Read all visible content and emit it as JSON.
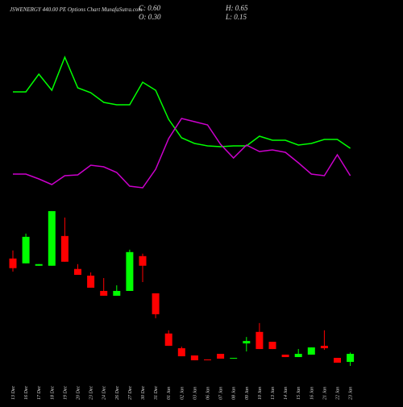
{
  "chart_data": {
    "type": "candlestick",
    "title": "JSWENERGY 440.00 PE Options Chart MunafaSutra.com",
    "ohlc_header": [
      "C: 0.60",
      "H: 0.65",
      "O: 0.30",
      "L: 0.15"
    ],
    "categories": [
      "13 Dec",
      "16 Dec",
      "17 Dec",
      "18 Dec",
      "19 Dec",
      "20 Dec",
      "23 Dec",
      "24 Dec",
      "26 Dec",
      "27 Dec",
      "30 Dec",
      "31 Dec",
      "01 Jan",
      "02 Jan",
      "03 Jan",
      "06 Jan",
      "07 Jan",
      "08 Jan",
      "09 Jan",
      "10 Jan",
      "13 Jan",
      "14 Jan",
      "15 Jan",
      "16 Jan",
      "21 Jan",
      "22 Jan",
      "23 Jan"
    ],
    "open": [
      4.16,
      3.98,
      3.89,
      3.89,
      5.0,
      3.77,
      3.52,
      2.95,
      2.77,
      2.95,
      4.25,
      2.86,
      1.36,
      0.81,
      0.54,
      0.39,
      0.6,
      0.42,
      0.99,
      1.42,
      1.05,
      0.57,
      0.48,
      0.57,
      0.9,
      0.45,
      0.3
    ],
    "high": [
      4.46,
      5.09,
      3.95,
      5.93,
      5.69,
      3.95,
      3.64,
      3.43,
      3.16,
      4.49,
      4.34,
      2.86,
      1.48,
      0.87,
      0.54,
      0.39,
      0.6,
      0.45,
      1.23,
      1.75,
      1.05,
      0.57,
      0.78,
      0.84,
      1.48,
      0.45,
      0.65
    ],
    "low": [
      3.67,
      3.98,
      3.89,
      3.89,
      4.04,
      3.55,
      3.07,
      2.77,
      2.77,
      2.95,
      3.28,
      1.93,
      0.9,
      0.51,
      0.36,
      0.36,
      0.42,
      0.42,
      0.69,
      0.78,
      0.78,
      0.48,
      0.48,
      0.57,
      0.75,
      0.27,
      0.15
    ],
    "close": [
      3.8,
      4.97,
      3.95,
      5.93,
      4.04,
      3.55,
      3.07,
      2.77,
      2.95,
      4.4,
      3.89,
      2.08,
      0.9,
      0.51,
      0.36,
      0.36,
      0.42,
      0.45,
      1.08,
      0.78,
      0.78,
      0.48,
      0.6,
      0.84,
      0.81,
      0.27,
      0.6
    ],
    "ylim": [
      0,
      6.5
    ],
    "up_color": "#00ff00",
    "down_color": "#ff0000",
    "lines_ylim": [
      0,
      100
    ],
    "lines": [
      {
        "color": "#00ff00",
        "values": [
          68,
          68,
          79,
          69,
          89.5,
          70.5,
          67.5,
          61.5,
          60,
          60,
          74,
          69,
          51,
          39.5,
          36,
          34.5,
          34,
          34.5,
          34.5,
          40.5,
          38,
          38,
          35,
          36,
          38.5,
          38.5,
          33
        ]
      },
      {
        "color": "#cc00cc",
        "values": [
          17,
          17,
          14,
          10.5,
          16,
          16.5,
          22.5,
          21.5,
          18,
          9.5,
          8.5,
          20,
          39,
          51.5,
          49.5,
          47.5,
          35.5,
          27,
          35,
          31,
          32,
          30.5,
          24,
          17,
          16,
          29,
          16
        ]
      }
    ]
  }
}
